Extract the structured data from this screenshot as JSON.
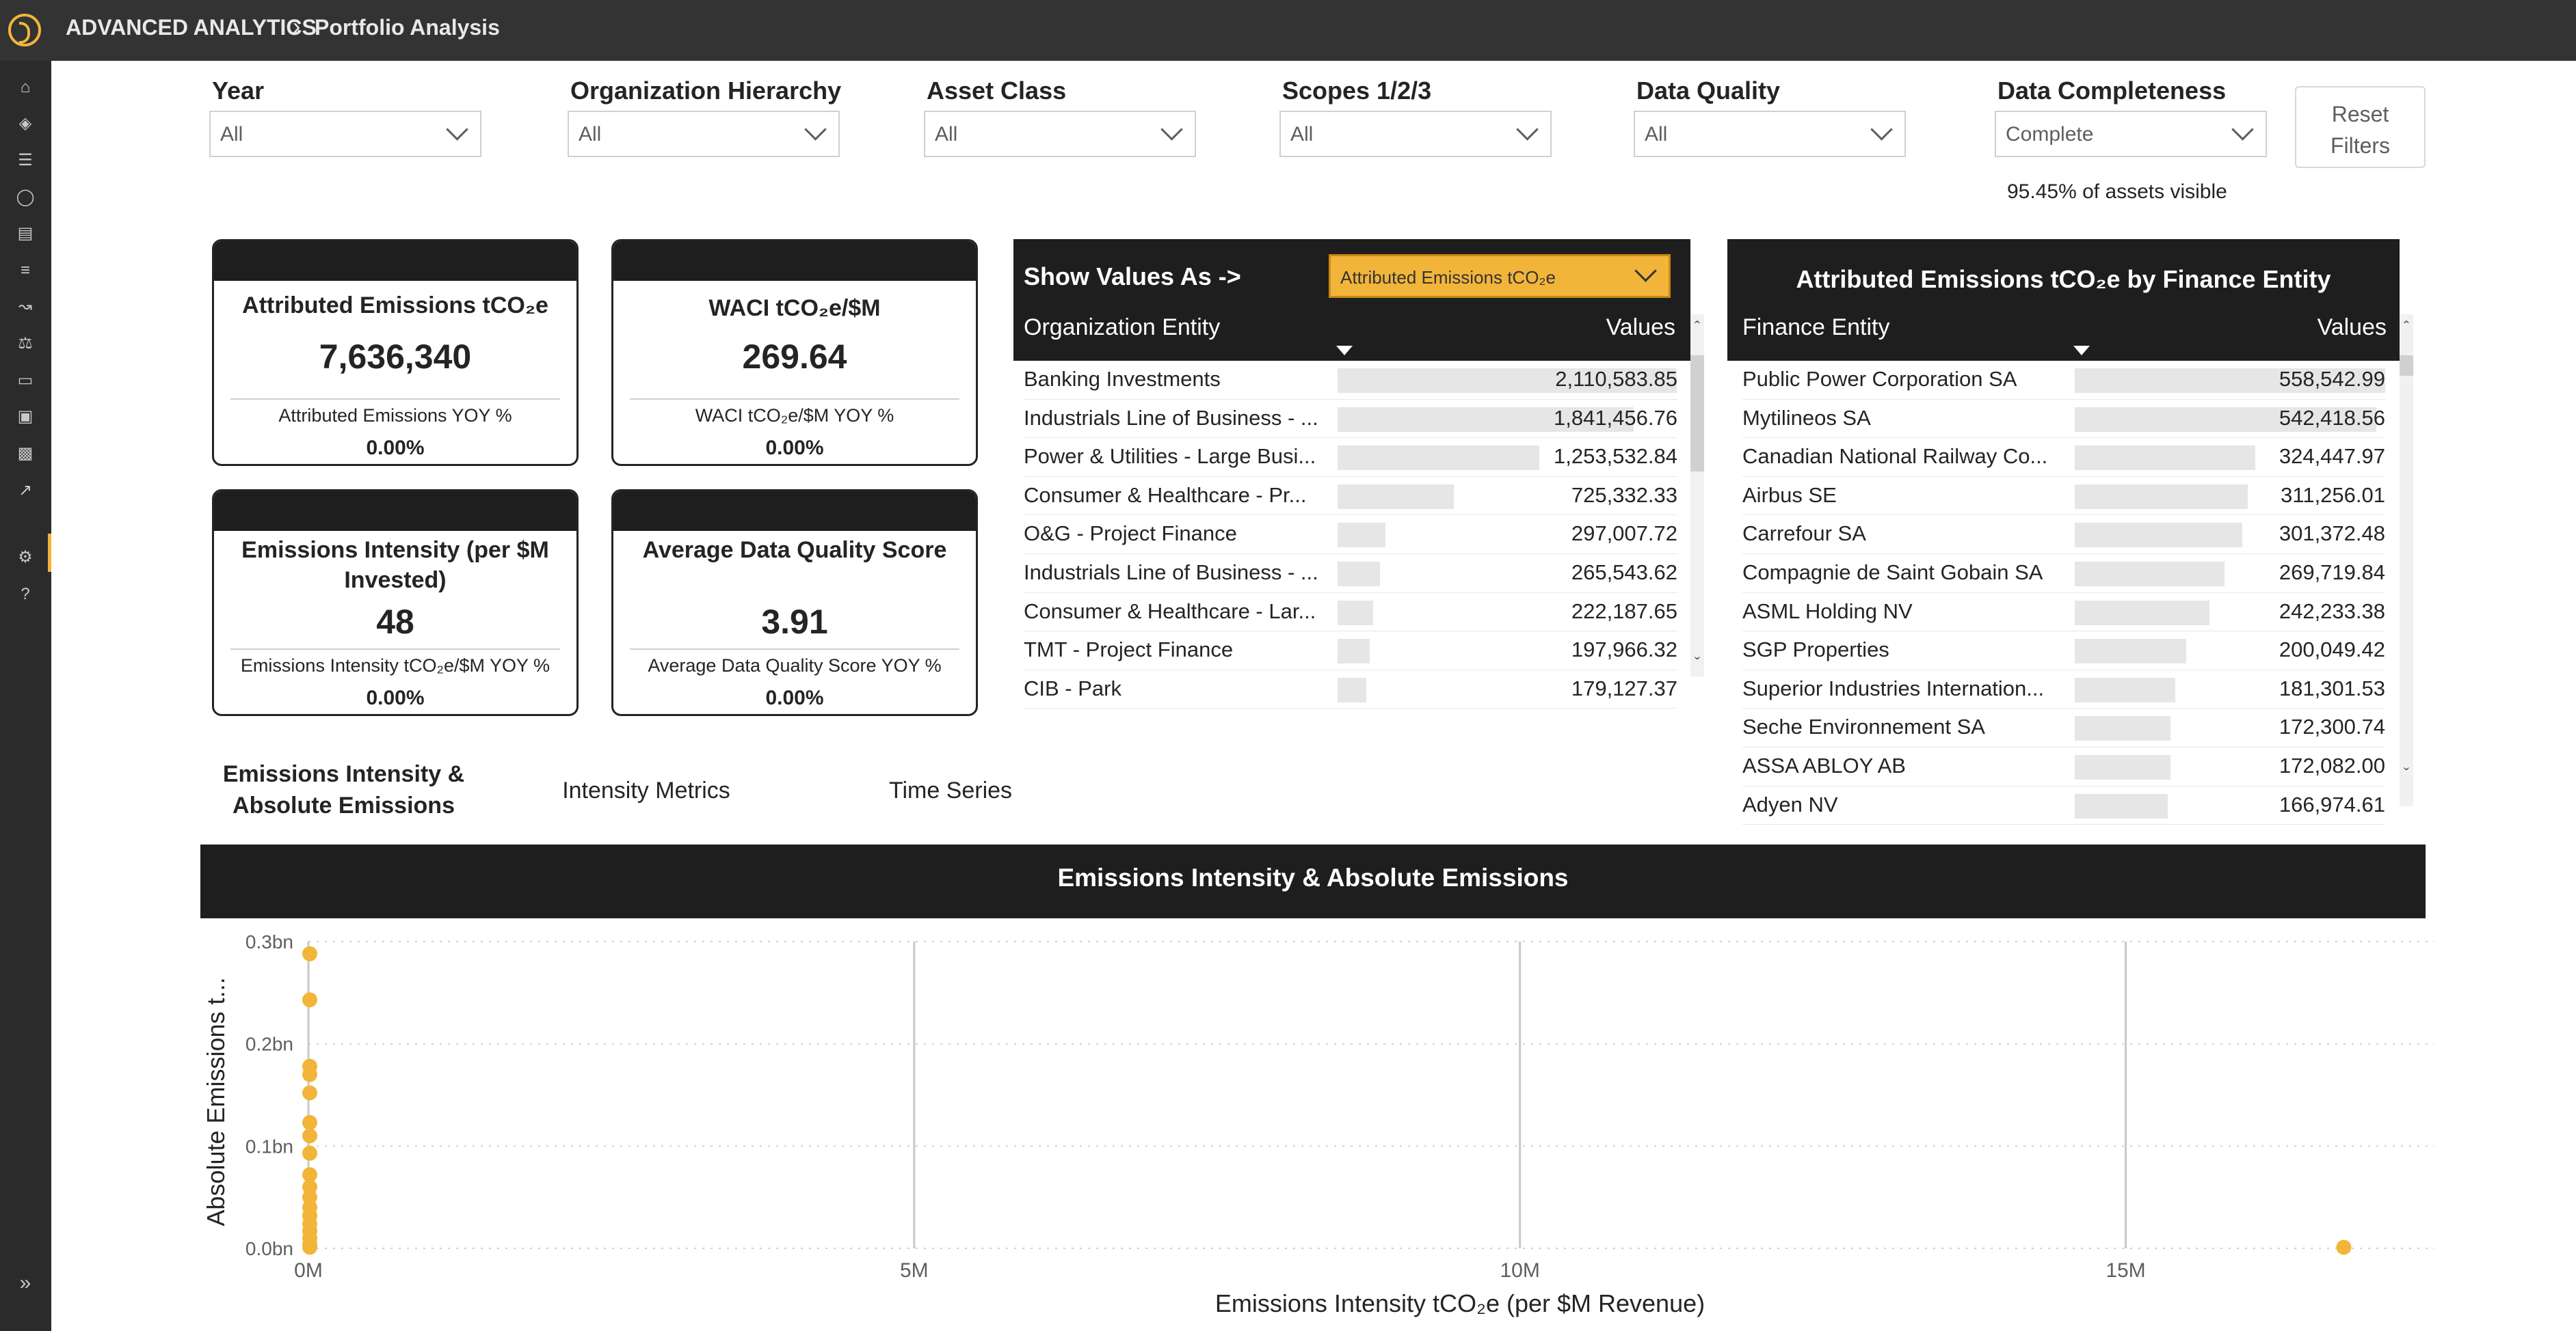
{
  "header": {
    "app_name": "ADVANCED ANALYTICS",
    "page_name": "Portfolio Analysis"
  },
  "rail": {
    "icons": [
      "home-icon",
      "compass-icon",
      "layers-icon",
      "lightbulb-icon",
      "clipboard-icon",
      "list-icon",
      "line-chart-icon",
      "balance-icon",
      "card-icon",
      "report-icon",
      "stack-icon",
      "analytics-icon",
      "settings-icon",
      "help-icon"
    ],
    "expand_label": "»"
  },
  "filters": {
    "year": {
      "label": "Year",
      "value": "All"
    },
    "org_hierarchy": {
      "label": "Organization Hierarchy",
      "value": "All"
    },
    "asset_class": {
      "label": "Asset Class",
      "value": "All"
    },
    "scopes": {
      "label": "Scopes 1/2/3",
      "value": "All"
    },
    "data_quality": {
      "label": "Data Quality",
      "value": "All"
    },
    "data_completeness": {
      "label": "Data Completeness",
      "value": "Complete"
    },
    "reset_label": "Reset Filters",
    "assets_visible": "95.45% of assets visible"
  },
  "kpis": {
    "attributed": {
      "title": "Attributed Emissions tCO₂e",
      "value": "7,636,340",
      "yoy_label": "Attributed Emissions YOY %",
      "yoy_value": "0.00%"
    },
    "waci": {
      "title": "WACI tCO₂e/$M",
      "value": "269.64",
      "yoy_label": "WACI tCO₂e/$M YOY %",
      "yoy_value": "0.00%"
    },
    "intensity": {
      "title": "Emissions Intensity (per $M Invested)",
      "value": "48",
      "yoy_label": "Emissions Intensity tCO₂e/$M YOY %",
      "yoy_value": "0.00%"
    },
    "dq": {
      "title": "Average Data Quality Score",
      "value": "3.91",
      "yoy_label": "Average Data Quality Score YOY %",
      "yoy_value": "0.00%"
    }
  },
  "org_table": {
    "show_values_label": "Show Values As ->",
    "show_values_value": "Attributed Emissions tCO₂e",
    "col_name": "Organization Entity",
    "col_values": "Values",
    "rows": [
      {
        "name": "Banking Investments",
        "value": "2,110,583.85",
        "num": 2110583.85
      },
      {
        "name": "Industrials Line of Business - ...",
        "value": "1,841,456.76",
        "num": 1841456.76
      },
      {
        "name": "Power & Utilities - Large Busi...",
        "value": "1,253,532.84",
        "num": 1253532.84
      },
      {
        "name": "Consumer & Healthcare - Pr...",
        "value": "725,332.33",
        "num": 725332.33
      },
      {
        "name": "O&G - Project Finance",
        "value": "297,007.72",
        "num": 297007.72
      },
      {
        "name": "Industrials Line of Business - ...",
        "value": "265,543.62",
        "num": 265543.62
      },
      {
        "name": "Consumer & Healthcare - Lar...",
        "value": "222,187.65",
        "num": 222187.65
      },
      {
        "name": "TMT - Project Finance",
        "value": "197,966.32",
        "num": 197966.32
      },
      {
        "name": "CIB - Park",
        "value": "179,127.37",
        "num": 179127.37
      }
    ]
  },
  "fin_table": {
    "title": "Attributed Emissions tCO₂e by Finance Entity",
    "col_name": "Finance Entity",
    "col_values": "Values",
    "rows": [
      {
        "name": "Public Power Corporation SA",
        "value": "558,542.99",
        "num": 558542.99
      },
      {
        "name": "Mytilineos SA",
        "value": "542,418.56",
        "num": 542418.56
      },
      {
        "name": "Canadian National Railway Co...",
        "value": "324,447.97",
        "num": 324447.97
      },
      {
        "name": "Airbus SE",
        "value": "311,256.01",
        "num": 311256.01
      },
      {
        "name": "Carrefour SA",
        "value": "301,372.48",
        "num": 301372.48
      },
      {
        "name": "Compagnie de Saint Gobain SA",
        "value": "269,719.84",
        "num": 269719.84
      },
      {
        "name": "ASML Holding NV",
        "value": "242,233.38",
        "num": 242233.38
      },
      {
        "name": "SGP Properties",
        "value": "200,049.42",
        "num": 200049.42
      },
      {
        "name": "Superior Industries Internation...",
        "value": "181,301.53",
        "num": 181301.53
      },
      {
        "name": "Seche Environnement SA",
        "value": "172,300.74",
        "num": 172300.74
      },
      {
        "name": "ASSA ABLOY AB",
        "value": "172,082.00",
        "num": 172082.0
      },
      {
        "name": "Adyen NV",
        "value": "166,974.61",
        "num": 166974.61
      }
    ]
  },
  "tabs": [
    "Emissions Intensity & Absolute Emissions",
    "Intensity Metrics",
    "Time Series"
  ],
  "chart_data": {
    "type": "scatter",
    "title": "Emissions Intensity & Absolute Emissions",
    "xlabel": "Emissions Intensity tCO₂e (per $M Revenue)",
    "ylabel": "Absolute Emissions t...",
    "x_ticks": [
      "0M",
      "5M",
      "10M",
      "15M"
    ],
    "y_ticks": [
      "0.0bn",
      "0.1bn",
      "0.2bn",
      "0.3bn"
    ],
    "xlim": [
      0,
      18000000
    ],
    "ylim": [
      0,
      0.3
    ],
    "color": "#f2b53a",
    "points": [
      {
        "x": 0,
        "y": 0.288
      },
      {
        "x": 0,
        "y": 0.243
      },
      {
        "x": 0,
        "y": 0.178
      },
      {
        "x": 0,
        "y": 0.17
      },
      {
        "x": 0,
        "y": 0.152
      },
      {
        "x": 0,
        "y": 0.123
      },
      {
        "x": 0,
        "y": 0.11
      },
      {
        "x": 0,
        "y": 0.093
      },
      {
        "x": 0,
        "y": 0.072
      },
      {
        "x": 0,
        "y": 0.06
      },
      {
        "x": 0,
        "y": 0.05
      },
      {
        "x": 0,
        "y": 0.04
      },
      {
        "x": 0,
        "y": 0.032
      },
      {
        "x": 0,
        "y": 0.024
      },
      {
        "x": 0,
        "y": 0.017
      },
      {
        "x": 0,
        "y": 0.01
      },
      {
        "x": 0,
        "y": 0.004
      },
      {
        "x": 0,
        "y": 0.001
      },
      {
        "x": 16800000,
        "y": 0.001
      }
    ]
  }
}
